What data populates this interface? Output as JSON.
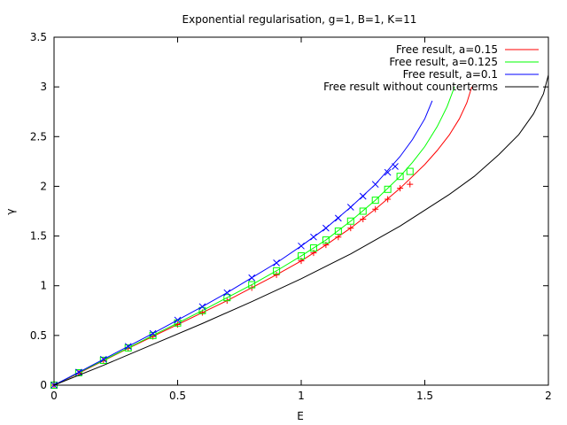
{
  "chart_data": {
    "type": "line",
    "title": "Exponential regularisation, g=1, B=1, K=11",
    "xlabel": "E",
    "ylabel": "γ",
    "xlim": [
      0,
      2
    ],
    "ylim": [
      0,
      3.5
    ],
    "xticks": [
      0,
      0.5,
      1,
      1.5,
      2
    ],
    "xtick_labels": [
      "0",
      "0.5",
      "1",
      "1.5",
      "2"
    ],
    "yticks": [
      0,
      0.5,
      1,
      1.5,
      2,
      2.5,
      3,
      3.5
    ],
    "ytick_labels": [
      "0",
      "0.5",
      "1",
      "1.5",
      "2",
      "2.5",
      "3",
      "3.5"
    ],
    "grid": false,
    "legend": "top-right",
    "series": [
      {
        "name": "Free result, a=0.15",
        "color": "#ff0000",
        "marker": "plus",
        "x": [
          0,
          0.1,
          0.2,
          0.3,
          0.4,
          0.5,
          0.6,
          0.7,
          0.8,
          0.9,
          1.0,
          1.1,
          1.2,
          1.3,
          1.4,
          1.5,
          1.55,
          1.6,
          1.64,
          1.67,
          1.69
        ],
        "y": [
          0,
          0.12,
          0.245,
          0.37,
          0.49,
          0.61,
          0.73,
          0.85,
          0.98,
          1.11,
          1.25,
          1.41,
          1.58,
          1.77,
          1.98,
          2.22,
          2.36,
          2.52,
          2.68,
          2.84,
          3.0
        ],
        "marker_x": [
          0.0,
          0.1,
          0.2,
          0.3,
          0.4,
          0.5,
          0.6,
          0.7,
          0.8,
          0.9,
          1.0,
          1.05,
          1.1,
          1.15,
          1.2,
          1.25,
          1.3,
          1.35,
          1.4,
          1.44
        ],
        "marker_y": [
          0.0,
          0.12,
          0.245,
          0.37,
          0.49,
          0.61,
          0.73,
          0.85,
          0.98,
          1.11,
          1.25,
          1.33,
          1.41,
          1.49,
          1.58,
          1.67,
          1.77,
          1.87,
          1.98,
          2.02
        ]
      },
      {
        "name": "Free result, a=0.125",
        "color": "#00ff00",
        "marker": "box",
        "x": [
          0,
          0.1,
          0.2,
          0.3,
          0.4,
          0.5,
          0.6,
          0.7,
          0.8,
          0.9,
          1.0,
          1.1,
          1.2,
          1.3,
          1.4,
          1.45,
          1.5,
          1.55,
          1.59,
          1.62
        ],
        "y": [
          0,
          0.125,
          0.25,
          0.375,
          0.5,
          0.625,
          0.75,
          0.88,
          1.01,
          1.15,
          1.3,
          1.46,
          1.65,
          1.86,
          2.1,
          2.24,
          2.4,
          2.6,
          2.8,
          3.0
        ],
        "marker_x": [
          0.0,
          0.1,
          0.2,
          0.3,
          0.4,
          0.5,
          0.6,
          0.7,
          0.8,
          0.9,
          1.0,
          1.05,
          1.1,
          1.15,
          1.2,
          1.25,
          1.3,
          1.35,
          1.4,
          1.44
        ],
        "marker_y": [
          0.0,
          0.125,
          0.25,
          0.375,
          0.5,
          0.625,
          0.75,
          0.88,
          1.01,
          1.15,
          1.3,
          1.38,
          1.46,
          1.55,
          1.65,
          1.75,
          1.86,
          1.97,
          2.1,
          2.15
        ]
      },
      {
        "name": "Free result, a=0.1",
        "color": "#0000ff",
        "marker": "cross",
        "x": [
          0,
          0.1,
          0.2,
          0.3,
          0.4,
          0.5,
          0.6,
          0.7,
          0.8,
          0.9,
          1.0,
          1.1,
          1.2,
          1.3,
          1.4,
          1.45,
          1.5,
          1.53
        ],
        "y": [
          0,
          0.13,
          0.26,
          0.39,
          0.52,
          0.655,
          0.79,
          0.93,
          1.08,
          1.23,
          1.4,
          1.58,
          1.79,
          2.02,
          2.3,
          2.47,
          2.68,
          2.86
        ],
        "marker_x": [
          0.0,
          0.1,
          0.2,
          0.3,
          0.4,
          0.5,
          0.6,
          0.7,
          0.8,
          0.9,
          1.0,
          1.05,
          1.1,
          1.15,
          1.2,
          1.25,
          1.3,
          1.35,
          1.38
        ],
        "marker_y": [
          0.0,
          0.13,
          0.26,
          0.39,
          0.52,
          0.655,
          0.79,
          0.93,
          1.08,
          1.23,
          1.4,
          1.49,
          1.58,
          1.68,
          1.79,
          1.9,
          2.02,
          2.14,
          2.2
        ]
      },
      {
        "name": "Free result without counterterms",
        "color": "#000000",
        "marker": "none",
        "x": [
          0,
          0.2,
          0.4,
          0.6,
          0.8,
          1.0,
          1.2,
          1.4,
          1.6,
          1.7,
          1.8,
          1.88,
          1.94,
          1.98,
          2.0
        ],
        "y": [
          0,
          0.2,
          0.41,
          0.62,
          0.84,
          1.07,
          1.32,
          1.6,
          1.92,
          2.1,
          2.32,
          2.52,
          2.73,
          2.93,
          3.12
        ]
      }
    ]
  }
}
